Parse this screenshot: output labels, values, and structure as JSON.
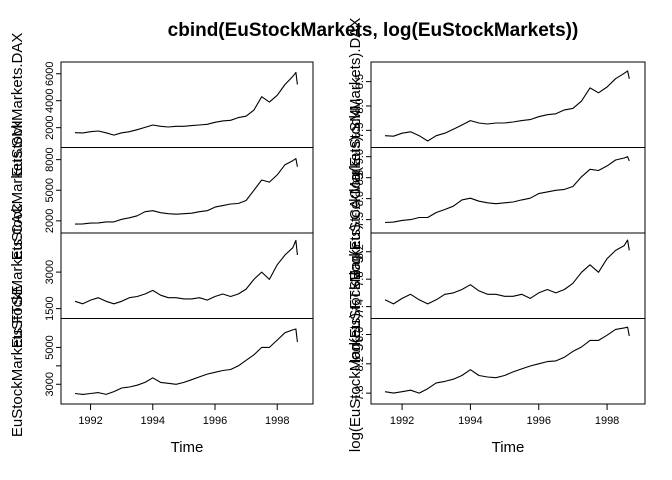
{
  "title": "cbind(EuStockMarkets, log(EuStockMarkets))",
  "chart_data": {
    "type": "line",
    "title": "cbind(EuStockMarkets, log(EuStockMarkets))",
    "x_axis": {
      "label": "Time",
      "range": [
        1991.5,
        1998.7
      ],
      "ticks": [
        1992,
        1994,
        1996,
        1998
      ],
      "tick_labels": [
        "1992",
        "1994",
        "1996",
        "1998"
      ]
    },
    "x": [
      1991.5,
      1991.75,
      1992.0,
      1992.25,
      1992.5,
      1992.75,
      1993.0,
      1993.25,
      1993.5,
      1993.75,
      1994.0,
      1994.25,
      1994.5,
      1994.75,
      1995.0,
      1995.25,
      1995.5,
      1995.75,
      1996.0,
      1996.25,
      1996.5,
      1996.75,
      1997.0,
      1997.25,
      1997.5,
      1997.75,
      1998.0,
      1998.25,
      1998.5,
      1998.6,
      1998.65
    ],
    "panels": [
      {
        "column": "left",
        "ylabel": "EuStockMarkets.DAX",
        "ylim": [
          900,
          6500
        ],
        "ticks": [
          2000,
          4000,
          6000
        ],
        "tick_labels": [
          "2000",
          "4000",
          "6000"
        ],
        "values": [
          1630,
          1610,
          1700,
          1750,
          1620,
          1450,
          1620,
          1700,
          1850,
          2020,
          2200,
          2100,
          2050,
          2100,
          2100,
          2150,
          2200,
          2250,
          2400,
          2500,
          2550,
          2750,
          2850,
          3300,
          4300,
          3900,
          4400,
          5200,
          5800,
          6100,
          5200
        ]
      },
      {
        "column": "left",
        "ylabel": "EuStockMarkets.SMI",
        "ylim": [
          1300,
          8700
        ],
        "ticks": [
          2000,
          5000,
          8000
        ],
        "tick_labels": [
          "2000",
          "5000",
          "8000"
        ],
        "values": [
          1680,
          1700,
          1780,
          1800,
          1900,
          1900,
          2150,
          2300,
          2500,
          2900,
          3000,
          2800,
          2700,
          2650,
          2700,
          2750,
          2900,
          3000,
          3350,
          3500,
          3650,
          3700,
          4000,
          5000,
          6000,
          5800,
          6500,
          7500,
          7900,
          8100,
          7300
        ]
      },
      {
        "column": "left",
        "ylabel": "EuStockMarkets.CAC",
        "ylim": [
          1300,
          4400
        ],
        "ticks": [
          1500,
          3000
        ],
        "tick_labels": [
          "1500",
          "3000"
        ],
        "values": [
          1800,
          1700,
          1850,
          1950,
          1800,
          1700,
          1800,
          1950,
          2000,
          2100,
          2250,
          2050,
          1950,
          1950,
          1900,
          1900,
          1950,
          1850,
          2000,
          2100,
          2000,
          2100,
          2300,
          2700,
          3000,
          2700,
          3300,
          3700,
          4000,
          4300,
          3700
        ]
      },
      {
        "column": "left",
        "ylabel": "EuStockMarkets.FTSE",
        "ylim": [
          2200,
          6300
        ],
        "ticks": [
          3000,
          4000,
          5000
        ],
        "tick_labels": [
          "3000",
          "",
          "5000"
        ],
        "values": [
          2500,
          2450,
          2500,
          2550,
          2450,
          2600,
          2800,
          2850,
          2950,
          3100,
          3350,
          3100,
          3050,
          3000,
          3100,
          3250,
          3400,
          3550,
          3650,
          3750,
          3800,
          4000,
          4300,
          4600,
          5000,
          5000,
          5400,
          5800,
          5950,
          6000,
          5300
        ]
      },
      {
        "column": "right",
        "ylabel": "log(EuStockMarkets).DAX",
        "ylim": [
          7.25,
          8.8
        ],
        "ticks": [
          7.5,
          8.0,
          8.5
        ],
        "tick_labels": [
          "7.5",
          "8.0",
          "8.5"
        ],
        "values": [
          7.39,
          7.38,
          7.44,
          7.47,
          7.39,
          7.28,
          7.39,
          7.44,
          7.52,
          7.61,
          7.7,
          7.65,
          7.63,
          7.65,
          7.65,
          7.67,
          7.7,
          7.72,
          7.78,
          7.82,
          7.84,
          7.92,
          7.95,
          8.1,
          8.37,
          8.27,
          8.39,
          8.56,
          8.67,
          8.72,
          8.56
        ]
      },
      {
        "column": "right",
        "ylabel": "log(EuStockMarkets).SMI",
        "ylim": [
          7.3,
          9.1
        ],
        "ticks": [
          7.5,
          8.0,
          8.5,
          9.0
        ],
        "tick_labels": [
          "7.5",
          "8.0",
          "8.5",
          "9.0"
        ],
        "values": [
          7.43,
          7.44,
          7.48,
          7.5,
          7.55,
          7.55,
          7.67,
          7.74,
          7.82,
          7.97,
          8.01,
          7.94,
          7.9,
          7.88,
          7.9,
          7.92,
          7.97,
          8.01,
          8.12,
          8.16,
          8.2,
          8.22,
          8.29,
          8.52,
          8.7,
          8.67,
          8.78,
          8.92,
          8.97,
          9.0,
          8.9
        ]
      },
      {
        "column": "right",
        "ylabel": "log(EuStockMarkets).CAC",
        "ylim": [
          7.3,
          8.4
        ],
        "ticks": [
          7.4,
          7.8,
          8.2
        ],
        "tick_labels": [
          "7.4",
          "7.8",
          "8.2"
        ],
        "values": [
          7.5,
          7.44,
          7.52,
          7.58,
          7.5,
          7.44,
          7.5,
          7.58,
          7.6,
          7.65,
          7.72,
          7.63,
          7.58,
          7.58,
          7.55,
          7.55,
          7.58,
          7.52,
          7.6,
          7.65,
          7.6,
          7.65,
          7.74,
          7.9,
          8.01,
          7.9,
          8.1,
          8.22,
          8.29,
          8.37,
          8.22
        ]
      },
      {
        "column": "right",
        "ylabel": "log(EuStockMarkets).FTSE",
        "ylim": [
          7.72,
          8.75
        ],
        "ticks": [
          7.8,
          8.2,
          8.6
        ],
        "tick_labels": [
          "7.8",
          "8.2",
          "8.6"
        ],
        "values": [
          7.82,
          7.8,
          7.82,
          7.84,
          7.8,
          7.86,
          7.94,
          7.96,
          7.99,
          8.04,
          8.12,
          8.04,
          8.02,
          8.01,
          8.04,
          8.09,
          8.13,
          8.17,
          8.2,
          8.23,
          8.24,
          8.29,
          8.37,
          8.43,
          8.52,
          8.52,
          8.59,
          8.67,
          8.69,
          8.7,
          8.58
        ]
      }
    ]
  }
}
